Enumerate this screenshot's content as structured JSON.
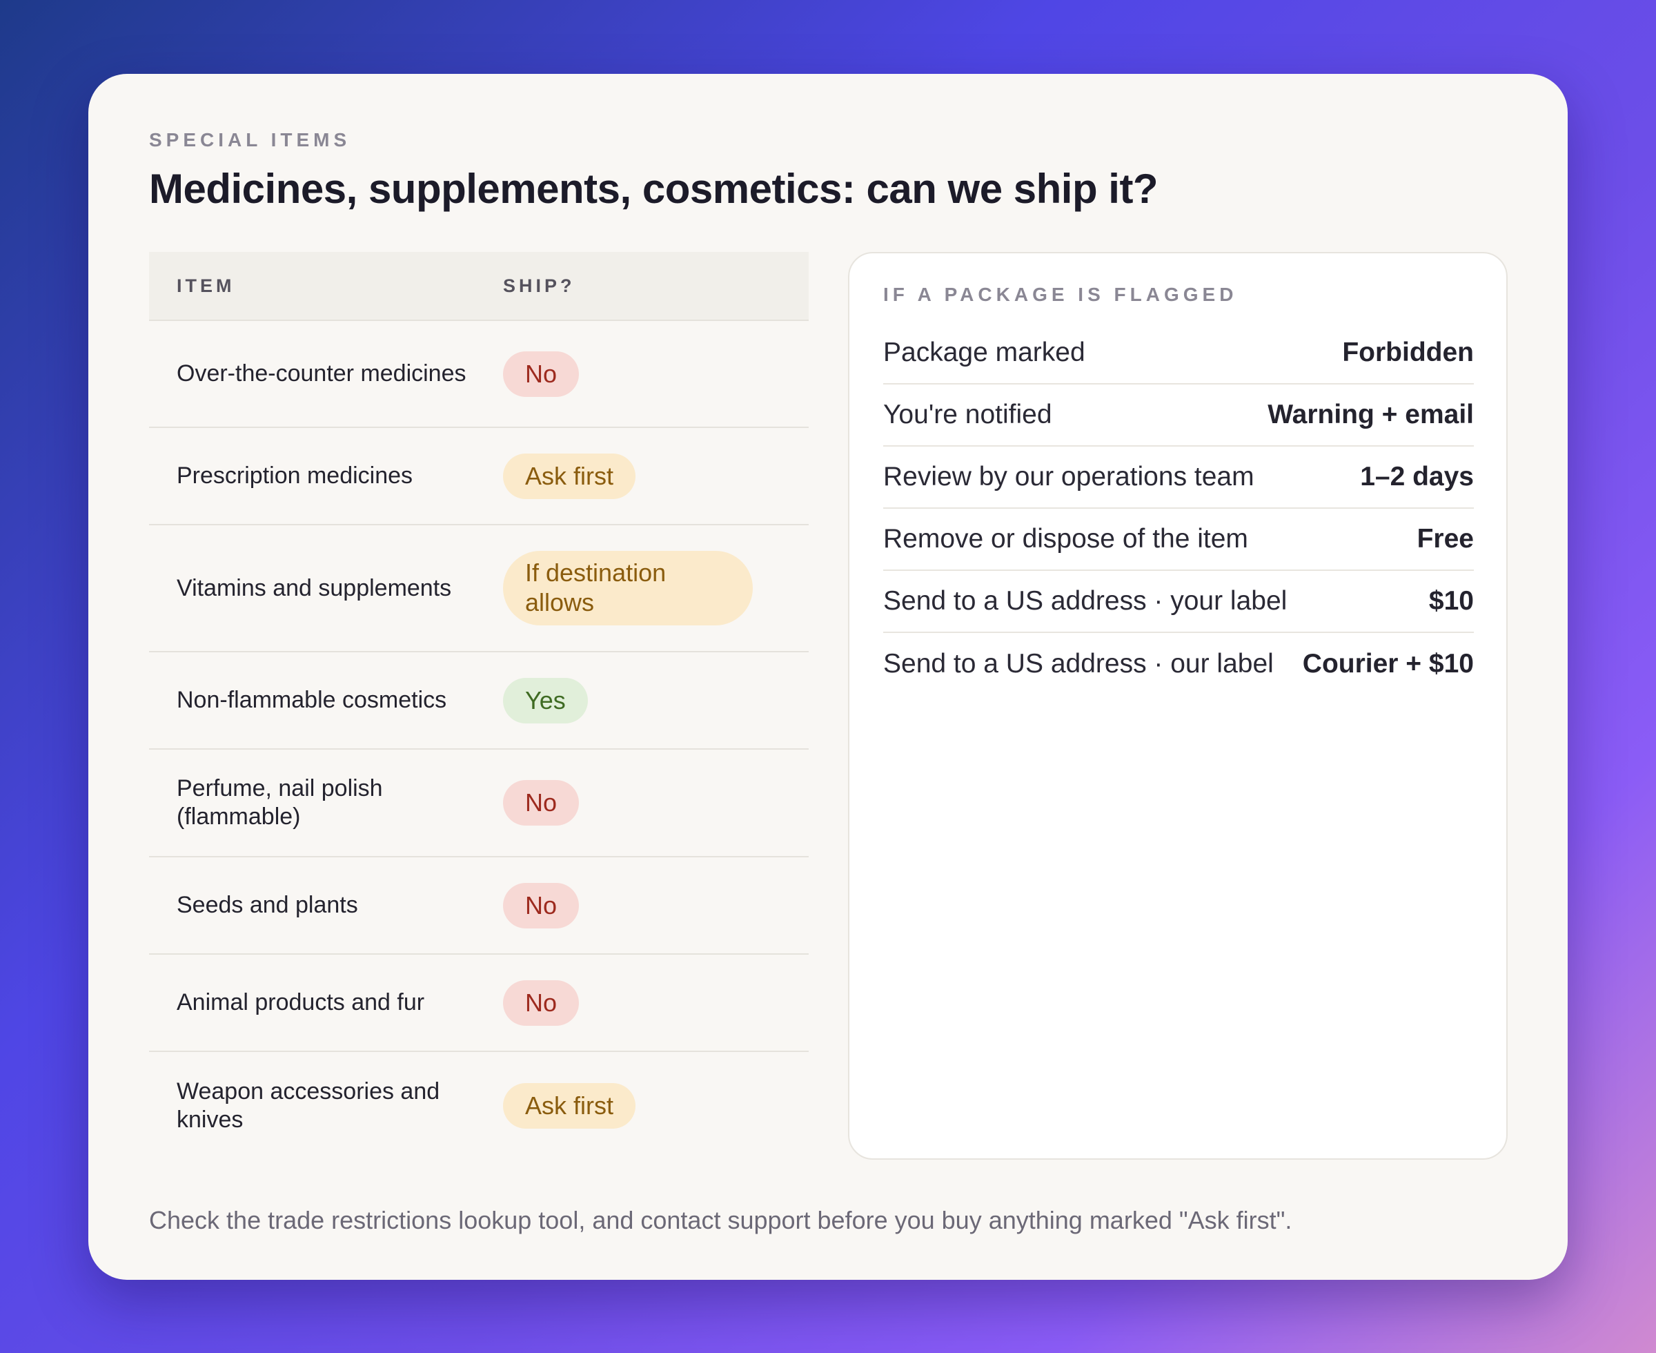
{
  "eyebrow": "SPECIAL ITEMS",
  "title": "Medicines, supplements, cosmetics: can we ship it?",
  "table": {
    "headers": {
      "item": "ITEM",
      "ship": "SHIP?"
    },
    "rows": [
      {
        "item": "Over-the-counter medicines",
        "ship": "No",
        "status": "no"
      },
      {
        "item": "Prescription medicines",
        "ship": "Ask first",
        "status": "ask"
      },
      {
        "item": "Vitamins and supplements",
        "ship": "If destination allows",
        "status": "ask"
      },
      {
        "item": "Non-flammable cosmetics",
        "ship": "Yes",
        "status": "yes"
      },
      {
        "item": "Perfume, nail polish (flammable)",
        "ship": "No",
        "status": "no"
      },
      {
        "item": "Seeds and plants",
        "ship": "No",
        "status": "no"
      },
      {
        "item": "Animal products and fur",
        "ship": "No",
        "status": "no"
      },
      {
        "item": "Weapon accessories and knives",
        "ship": "Ask first",
        "status": "ask"
      }
    ]
  },
  "panel": {
    "heading": "IF A PACKAGE IS FLAGGED",
    "rows": [
      {
        "label": "Package marked",
        "value": "Forbidden"
      },
      {
        "label": "You're notified",
        "value": "Warning + email"
      },
      {
        "label": "Review by our operations team",
        "value": "1–2 days"
      },
      {
        "label": "Remove or dispose of the item",
        "value": "Free"
      },
      {
        "label": "Send to a US address · your label",
        "value": "$10"
      },
      {
        "label": "Send to a US address · our label",
        "value": "Courier + $10"
      }
    ]
  },
  "footnote": "Check the trade restrictions lookup tool, and contact support before you buy anything marked \"Ask first\".",
  "colors": {
    "no_bg": "#f7d9d5",
    "no_text": "#9d2a1e",
    "ask_bg": "#fbeacb",
    "ask_text": "#8a5c0e",
    "yes_bg": "#e1efda",
    "yes_text": "#3f6b23"
  }
}
